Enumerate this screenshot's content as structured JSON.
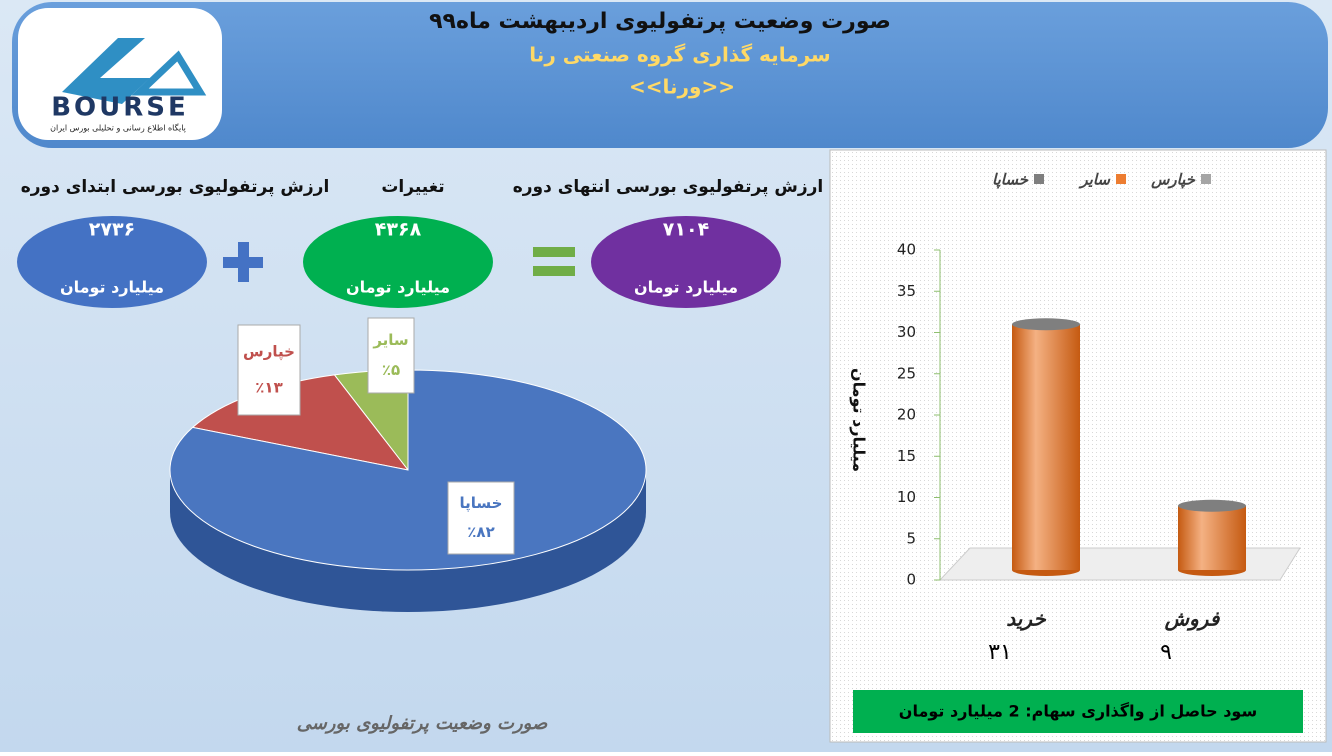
{
  "header": {
    "title": "صورت وضعیت پرتفولیوی اردیبهشت ماه۹۹",
    "subtitle": "سرمایه گذاری گروه صنعتی رنا",
    "code": "<<ورنا>>"
  },
  "logo": {
    "text": "BOURSE",
    "caption": "پایگاه اطلاع رسانی و تحلیلی بورس ایران"
  },
  "summary": [
    {
      "label": "ارزش پرتفولیوی بورسی ابتدای دوره",
      "value": "۲۷۳۶",
      "unit": "میلیارد تومان"
    },
    {
      "label": "تغییرات",
      "value": "۴۳۶۸",
      "unit": "میلیارد تومان"
    },
    {
      "label": "ارزش پرتفولیوی بورسی انتهای دوره",
      "value": "۷۱۰۴",
      "unit": "میلیارد تومان"
    }
  ],
  "chart_data": [
    {
      "type": "pie",
      "title": "صورت وضعیت پرتفولیوی بورسی",
      "categories": [
        "خساپا",
        "خپارس",
        "سایر"
      ],
      "values": [
        82,
        13,
        5
      ],
      "value_labels": [
        "٪۸۲",
        "٪۱۳",
        "٪۵"
      ],
      "colors": [
        "#4a76c0",
        "#c0504d",
        "#9bbb59"
      ]
    },
    {
      "type": "bar",
      "y_label": "میلیارد تومان",
      "categories": [
        "خرید",
        "فروش"
      ],
      "values": [
        31,
        9
      ],
      "value_labels": [
        "۳۱",
        "۹"
      ],
      "color": "#ed7d31",
      "legend": [
        {
          "name": "خپارس",
          "color": "#a5a5a5"
        },
        {
          "name": "سایر",
          "color": "#ed7d31"
        },
        {
          "name": "خساپا",
          "color": "#7f7f7f"
        }
      ],
      "ylim": [
        0,
        40
      ],
      "yticks": [
        0,
        5,
        10,
        15,
        20,
        25,
        30,
        35,
        40
      ]
    }
  ],
  "note": "سود حاصل از واگذاری سهام: 2 میلیارد تومان"
}
